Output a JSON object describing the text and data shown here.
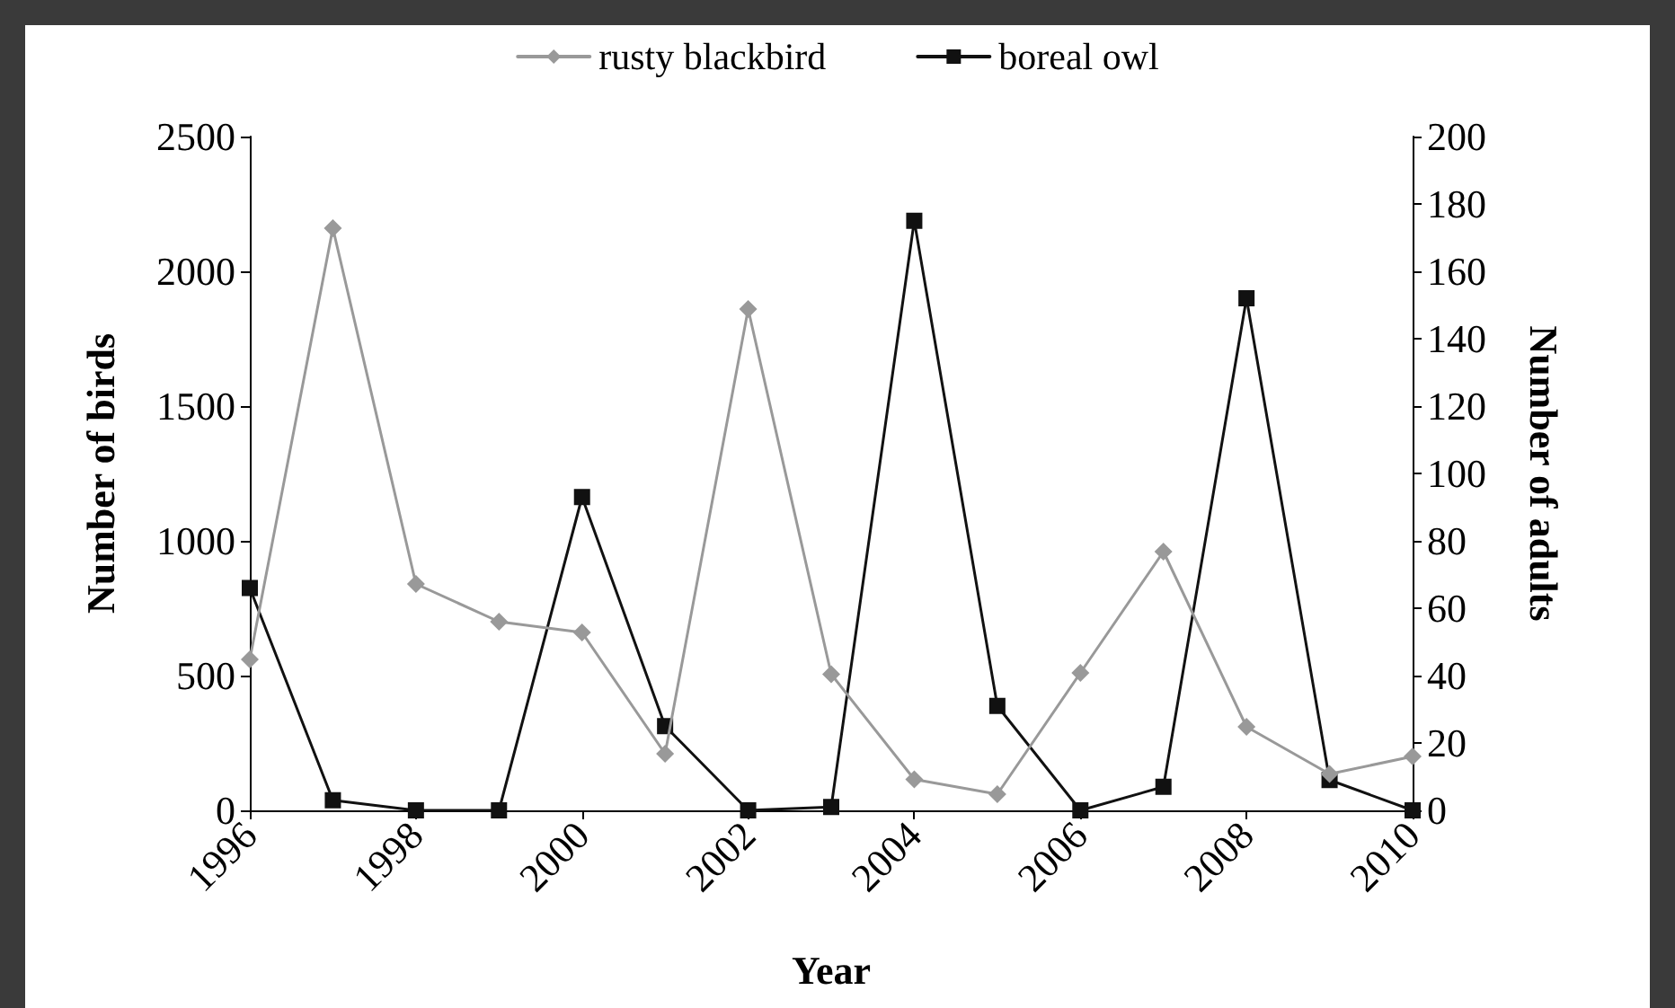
{
  "chart_data": {
    "type": "line",
    "xlabel": "Year",
    "ylabel": "Number of birds",
    "y2label": "Number of adults",
    "x": [
      1996,
      1997,
      1998,
      1999,
      2000,
      2001,
      2002,
      2003,
      2004,
      2005,
      2006,
      2007,
      2008,
      2009,
      2010
    ],
    "xlim": [
      1996,
      2010
    ],
    "xticks": [
      1996,
      1998,
      2000,
      2002,
      2004,
      2006,
      2008,
      2010
    ],
    "ylim": [
      0,
      2500
    ],
    "yticks": [
      0,
      500,
      1000,
      1500,
      2000,
      2500
    ],
    "y2lim": [
      0,
      200
    ],
    "y2ticks": [
      0,
      20,
      40,
      60,
      80,
      100,
      120,
      140,
      160,
      180,
      200
    ],
    "series": [
      {
        "name": "rusty blackbird",
        "color": "#999999",
        "marker": "diamond",
        "values": [
          560,
          2160,
          840,
          700,
          660,
          210,
          1860,
          505,
          115,
          60,
          510,
          960,
          310,
          135,
          200
        ]
      },
      {
        "name": "boreal owl",
        "color": "#111111",
        "marker": "square",
        "axis": "y2",
        "values": [
          66,
          3,
          0,
          0,
          93,
          25,
          0,
          1,
          175,
          31,
          0,
          7,
          152,
          9,
          0
        ]
      }
    ],
    "grid": false,
    "legend": "top"
  }
}
